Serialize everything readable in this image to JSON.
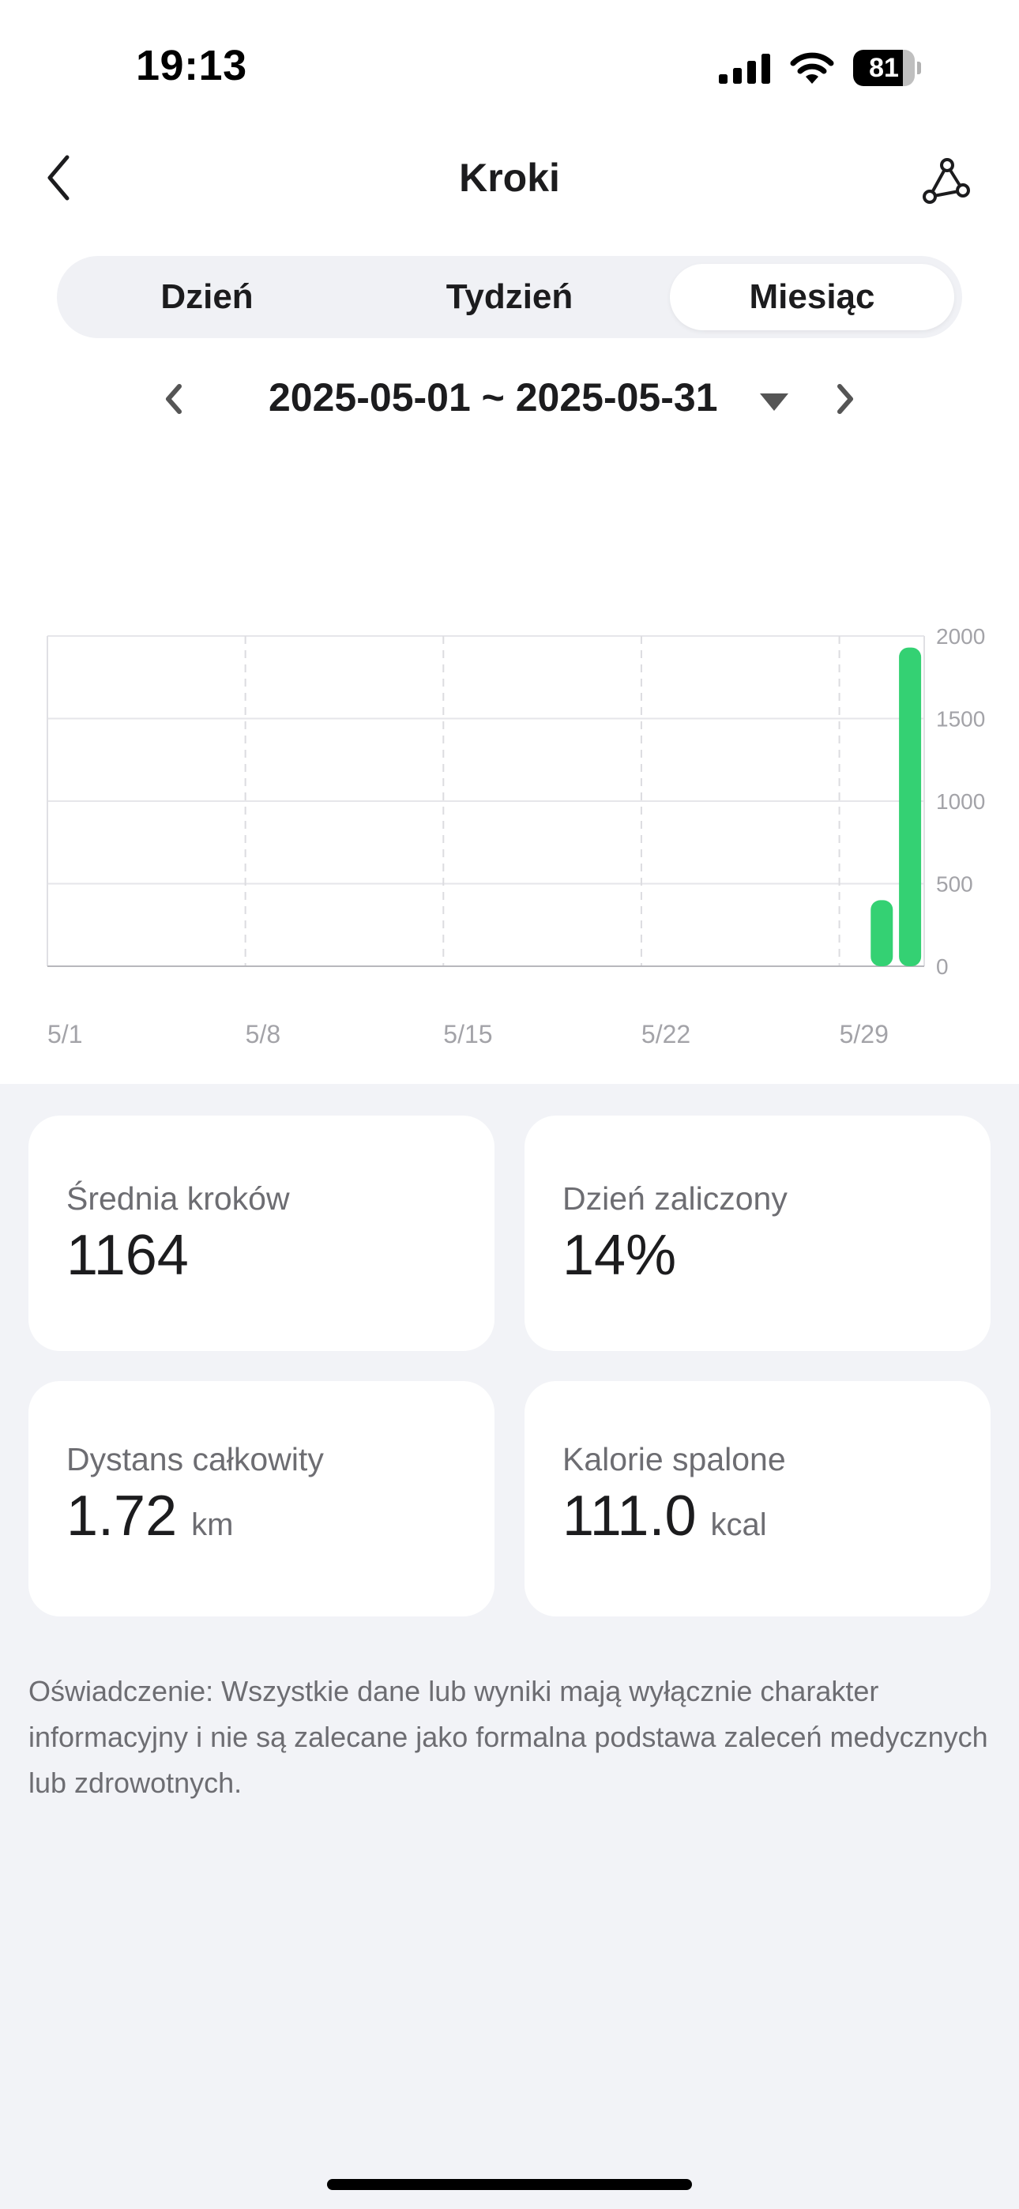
{
  "status_bar": {
    "time": "19:13",
    "battery_level": "81",
    "battery_fraction": 0.81
  },
  "header": {
    "title": "Kroki",
    "icons": {
      "back": "chevron-left-icon",
      "share": "share-nodes-icon"
    }
  },
  "tabs": [
    {
      "label": "Dzień",
      "active": false
    },
    {
      "label": "Tydzień",
      "active": false
    },
    {
      "label": "Miesiąc",
      "active": true
    }
  ],
  "date_range": {
    "label": "2025-05-01 ~ 2025-05-31",
    "icons": {
      "prev": "chevron-left-icon",
      "next": "chevron-right-icon",
      "dropdown": "triangle-down-icon"
    }
  },
  "chart_data": {
    "type": "bar",
    "title": "",
    "xlabel": "",
    "ylabel": "",
    "x_tick_labels": [
      "5/1",
      "5/8",
      "5/15",
      "5/22",
      "5/29"
    ],
    "y_tick_labels": [
      "0",
      "500",
      "1000",
      "1500",
      "2000"
    ],
    "ylim": [
      0,
      2000
    ],
    "xlim_days": [
      1,
      31
    ],
    "grid": true,
    "bar_color": "#34d173",
    "series": [
      {
        "points": [
          {
            "day": 30,
            "x": "5/30",
            "y": 400
          },
          {
            "day": 31,
            "x": "5/31",
            "y": 1930
          }
        ]
      }
    ]
  },
  "stats": [
    {
      "label": "Średnia kroków",
      "value": "1164",
      "unit": ""
    },
    {
      "label": "Dzień zaliczony",
      "value": "14%",
      "unit": ""
    },
    {
      "label": "Dystans całkowity",
      "value": "1.72",
      "unit": "km"
    },
    {
      "label": "Kalorie spalone",
      "value": "111.0",
      "unit": "kcal"
    }
  ],
  "disclaimer": "Oświadczenie: Wszystkie dane lub wyniki mają wyłącznie charakter informacyjny i nie są zalecane jako formalna podstawa zaleceń medycznych lub zdrowotnych."
}
